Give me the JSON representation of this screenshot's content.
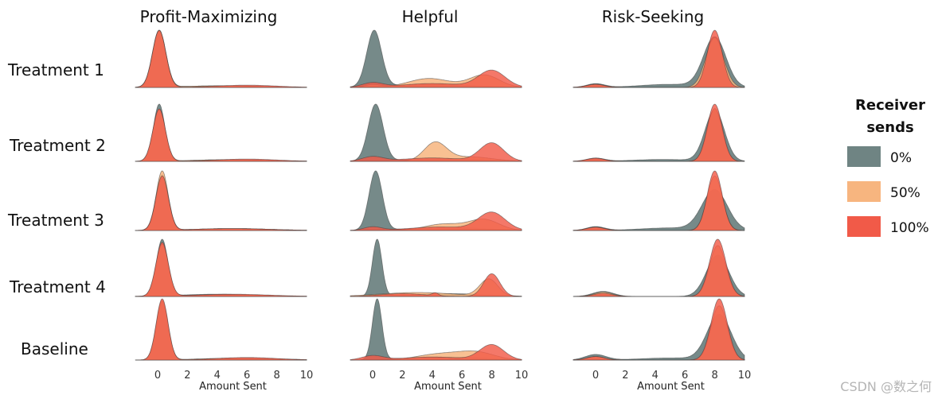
{
  "chart_data": {
    "type": "area",
    "subtype": "ridgeline-density",
    "columns": [
      "Profit-Maximizing",
      "Helpful",
      "Risk-Seeking"
    ],
    "rows": [
      "Treatment 1",
      "Treatment 2",
      "Treatment 3",
      "Treatment 4",
      "Baseline"
    ],
    "xlabel": "Amount Sent",
    "xlim": [
      -1.5,
      10
    ],
    "xticks": [
      0,
      2,
      4,
      6,
      8,
      10
    ],
    "legend": {
      "title_line1": "Receiver",
      "title_line2": "sends",
      "entries": [
        {
          "label": "0%",
          "color": "#6f8483"
        },
        {
          "label": "50%",
          "color": "#f7b57f"
        },
        {
          "label": "100%",
          "color": "#f15a48"
        }
      ]
    },
    "series_note": "Each series is a density curve given as mixture components [weight, center, width] in Amount Sent units.",
    "panels": {
      "Profit-Maximizing": {
        "Treatment 1": {
          "0%": [
            [
              1.0,
              0.1,
              0.45
            ],
            [
              0.03,
              4.5,
              2.5
            ]
          ],
          "50%": [
            [
              1.0,
              0.1,
              0.45
            ],
            [
              0.03,
              4.5,
              2.5
            ]
          ],
          "100%": [
            [
              1.0,
              0.1,
              0.45
            ],
            [
              0.04,
              6.0,
              2.0
            ]
          ]
        },
        "Treatment 2": {
          "0%": [
            [
              1.0,
              0.1,
              0.38
            ],
            [
              0.03,
              5.0,
              2.5
            ]
          ],
          "50%": [
            [
              0.9,
              0.1,
              0.42
            ],
            [
              0.03,
              5.0,
              2.5
            ]
          ],
          "100%": [
            [
              0.92,
              0.1,
              0.42
            ],
            [
              0.04,
              6.0,
              2.0
            ]
          ]
        },
        "Treatment 3": {
          "0%": [
            [
              0.86,
              0.3,
              0.42
            ],
            [
              0.03,
              5.0,
              2.5
            ]
          ],
          "50%": [
            [
              0.92,
              0.3,
              0.4
            ],
            [
              0.03,
              5.0,
              2.5
            ]
          ],
          "100%": [
            [
              0.84,
              0.3,
              0.42
            ],
            [
              0.03,
              5.0,
              2.5
            ]
          ]
        },
        "Treatment 4": {
          "0%": [
            [
              1.0,
              0.3,
              0.38
            ],
            [
              0.04,
              4.0,
              2.5
            ]
          ],
          "50%": [
            [
              0.92,
              0.3,
              0.42
            ],
            [
              0.03,
              5.0,
              2.5
            ]
          ],
          "100%": [
            [
              0.95,
              0.3,
              0.42
            ],
            [
              0.04,
              5.0,
              2.5
            ]
          ]
        },
        "Baseline": {
          "0%": [
            [
              0.9,
              0.3,
              0.38
            ],
            [
              0.03,
              5.5,
              2.5
            ]
          ],
          "50%": [
            [
              0.92,
              0.3,
              0.4
            ],
            [
              0.03,
              5.5,
              2.5
            ]
          ],
          "100%": [
            [
              0.95,
              0.3,
              0.4
            ],
            [
              0.04,
              6.0,
              2.0
            ]
          ]
        }
      },
      "Helpful": {
        "Treatment 1": {
          "0%": [
            [
              1.0,
              0.1,
              0.5
            ],
            [
              0.06,
              4.0,
              2.5
            ]
          ],
          "50%": [
            [
              0.16,
              3.8,
              1.4
            ],
            [
              0.22,
              7.5,
              1.0
            ],
            [
              0.05,
              0,
              0.5
            ]
          ],
          "100%": [
            [
              0.08,
              0,
              0.7
            ],
            [
              0.07,
              4.0,
              2.0
            ],
            [
              0.3,
              8.0,
              0.9
            ]
          ]
        },
        "Treatment 2": {
          "0%": [
            [
              1.0,
              0.2,
              0.5
            ],
            [
              0.05,
              5.0,
              2.5
            ]
          ],
          "50%": [
            [
              0.32,
              4.2,
              0.75
            ],
            [
              0.08,
              6.5,
              1.5
            ]
          ],
          "100%": [
            [
              0.08,
              0,
              0.7
            ],
            [
              0.06,
              4.0,
              2.0
            ],
            [
              0.32,
              8.0,
              0.8
            ]
          ]
        },
        "Treatment 3": {
          "0%": [
            [
              1.0,
              0.2,
              0.45
            ],
            [
              0.05,
              5.0,
              2.5
            ]
          ],
          "50%": [
            [
              0.11,
              4.8,
              1.3
            ],
            [
              0.18,
              7.5,
              1.0
            ]
          ],
          "100%": [
            [
              0.06,
              0,
              0.6
            ],
            [
              0.06,
              4.5,
              2.0
            ],
            [
              0.3,
              8.0,
              0.9
            ]
          ]
        },
        "Treatment 4": {
          "0%": [
            [
              1.0,
              0.3,
              0.32
            ],
            [
              0.05,
              5.0,
              2.5
            ]
          ],
          "50%": [
            [
              0.07,
              3.0,
              2.5
            ],
            [
              0.3,
              7.8,
              0.6
            ]
          ],
          "100%": [
            [
              0.05,
              2.0,
              1.5
            ],
            [
              0.05,
              4.2,
              0.2
            ],
            [
              0.4,
              8.0,
              0.55
            ]
          ]
        },
        "Baseline": {
          "0%": [
            [
              1.0,
              0.3,
              0.32
            ],
            [
              0.05,
              5.0,
              2.5
            ]
          ],
          "50%": [
            [
              0.1,
              4.5,
              1.5
            ],
            [
              0.12,
              7.0,
              1.2
            ]
          ],
          "100%": [
            [
              0.07,
              0,
              0.7
            ],
            [
              0.05,
              4.0,
              2.0
            ],
            [
              0.25,
              8.0,
              0.8
            ]
          ]
        }
      },
      "Risk-Seeking": {
        "Treatment 1": {
          "0%": [
            [
              0.06,
              0,
              0.6
            ],
            [
              0.05,
              5.0,
              2.0
            ],
            [
              0.8,
              8.0,
              0.75
            ]
          ],
          "50%": [
            [
              0.05,
              0,
              0.6
            ],
            [
              0.8,
              8.0,
              0.6
            ]
          ],
          "100%": [
            [
              0.05,
              0,
              0.6
            ],
            [
              0.92,
              8.0,
              0.5
            ]
          ]
        },
        "Treatment 2": {
          "0%": [
            [
              0.05,
              0,
              0.6
            ],
            [
              0.03,
              4.5,
              2.0
            ],
            [
              0.8,
              8.0,
              0.65
            ]
          ],
          "50%": [
            [
              0.04,
              0,
              0.6
            ],
            [
              0.83,
              8.0,
              0.5
            ]
          ],
          "100%": [
            [
              0.05,
              0,
              0.6
            ],
            [
              0.9,
              8.0,
              0.5
            ]
          ]
        },
        "Treatment 3": {
          "0%": [
            [
              0.06,
              0,
              0.6
            ],
            [
              0.04,
              5.0,
              2.0
            ],
            [
              0.62,
              8.0,
              0.85
            ]
          ],
          "50%": [
            [
              0.05,
              0,
              0.6
            ],
            [
              0.84,
              8.0,
              0.52
            ]
          ],
          "100%": [
            [
              0.05,
              0,
              0.6
            ],
            [
              0.92,
              8.0,
              0.5
            ]
          ]
        },
        "Treatment 4": {
          "0%": [
            [
              0.08,
              0.5,
              0.7
            ],
            [
              0.65,
              8.2,
              0.75
            ]
          ],
          "50%": [
            [
              0.07,
              0.5,
              0.6
            ],
            [
              0.8,
              8.2,
              0.55
            ]
          ],
          "100%": [
            [
              0.05,
              0.5,
              0.6
            ],
            [
              0.9,
              8.2,
              0.55
            ]
          ]
        },
        "Baseline": {
          "0%": [
            [
              0.08,
              0,
              0.7
            ],
            [
              0.03,
              5.0,
              2.0
            ],
            [
              0.65,
              8.3,
              0.8
            ]
          ],
          "50%": [
            [
              0.05,
              0,
              0.6
            ],
            [
              0.78,
              8.3,
              0.55
            ]
          ],
          "100%": [
            [
              0.05,
              0,
              0.6
            ],
            [
              0.88,
              8.3,
              0.55
            ]
          ]
        }
      }
    }
  },
  "watermark": "CSDN @数之何"
}
